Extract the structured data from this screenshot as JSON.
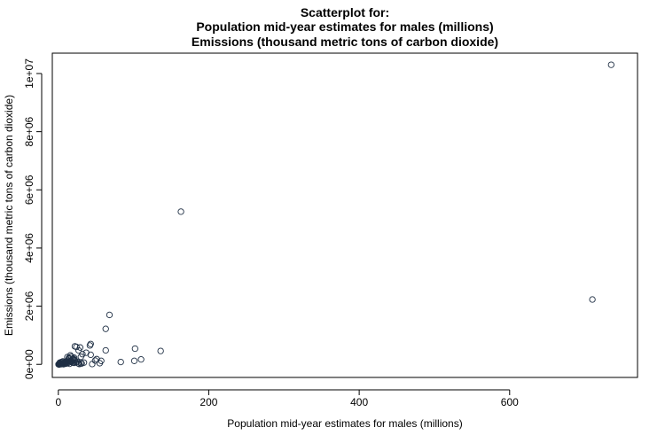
{
  "chart_data": {
    "type": "scatter",
    "title_lines": [
      "Scatterplot for:",
      "Population mid-year estimates for males (millions)",
      "Emissions (thousand metric tons of carbon dioxide)"
    ],
    "xlabel": "Population mid-year estimates for males (millions)",
    "ylabel": "Emissions (thousand metric tons of carbon dioxide)",
    "xlim": [
      -8,
      770
    ],
    "ylim": [
      -450000,
      10700000
    ],
    "x_ticks": [
      0,
      200,
      400,
      600
    ],
    "x_tick_labels": [
      "0",
      "200",
      "400",
      "600"
    ],
    "y_ticks": [
      0,
      2000000,
      4000000,
      6000000,
      8000000,
      10000000
    ],
    "y_tick_labels": [
      "0e+00",
      "2e+06",
      "4e+06",
      "6e+06",
      "8e+06",
      "1e+07"
    ],
    "grid": false,
    "point_color": "#1f2f44",
    "x": [
      735,
      710,
      163,
      68,
      63,
      63,
      136,
      102,
      110,
      101,
      83,
      55,
      57,
      51,
      49,
      45,
      43,
      42,
      43,
      37,
      32,
      30,
      29,
      27,
      24,
      22,
      21,
      20,
      19,
      34,
      30,
      27,
      25,
      23,
      21,
      19,
      18,
      17,
      16,
      15,
      14,
      13,
      12,
      11,
      10,
      9,
      8,
      7,
      6,
      5,
      4,
      3,
      2,
      1,
      0.5,
      1.5,
      2.5,
      3.5,
      4.5,
      5.5,
      6.5,
      7.5,
      8.5,
      9.5,
      11,
      13,
      15,
      17,
      19,
      22,
      26,
      28,
      31,
      12,
      14,
      16,
      18,
      20,
      2,
      3,
      4,
      5,
      6,
      7,
      8,
      9,
      10,
      1,
      2,
      3,
      4,
      5,
      6,
      7,
      8,
      0.8,
      1.2,
      0.3,
      0.6
    ],
    "y": [
      10300000,
      2230000,
      5250000,
      1700000,
      1220000,
      480000,
      460000,
      540000,
      170000,
      120000,
      80000,
      40000,
      120000,
      180000,
      130000,
      10000,
      700000,
      650000,
      330000,
      400000,
      350000,
      260000,
      580000,
      480000,
      600000,
      620000,
      230000,
      200000,
      150000,
      60000,
      40000,
      30000,
      90000,
      70000,
      50000,
      160000,
      120000,
      260000,
      310000,
      190000,
      220000,
      120000,
      90000,
      70000,
      60000,
      40000,
      50000,
      30000,
      20000,
      25000,
      15000,
      10000,
      8000,
      5000,
      2000,
      3000,
      4000,
      6000,
      8000,
      10000,
      12000,
      15000,
      20000,
      25000,
      30000,
      50000,
      20000,
      100000,
      60000,
      140000,
      40000,
      10000,
      30000,
      250000,
      210000,
      110000,
      80000,
      170000,
      60000,
      40000,
      80000,
      30000,
      100000,
      20000,
      70000,
      50000,
      90000,
      1000,
      12000,
      30000,
      45000,
      15000,
      35000,
      5000,
      25000,
      500,
      1500,
      200,
      800
    ]
  }
}
